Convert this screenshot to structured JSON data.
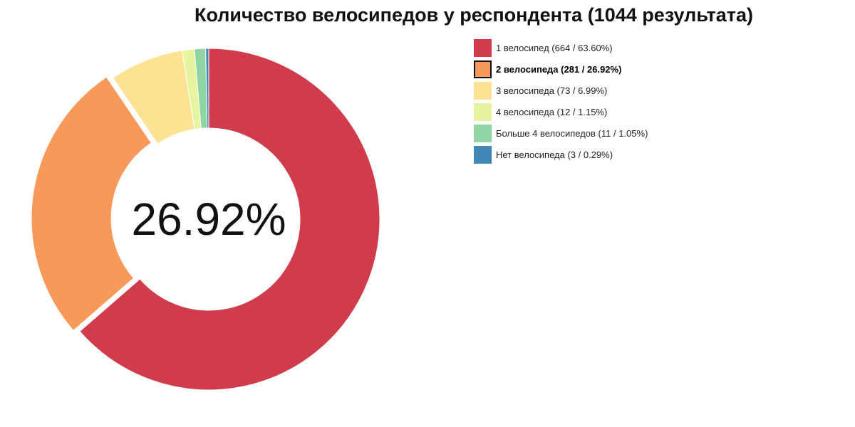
{
  "chart_data": {
    "type": "pie",
    "variant": "donut",
    "title": "Количество велосипедов у респондента (1044 результата)",
    "center_label": "26.92%",
    "highlighted_index": 1,
    "legend_position": "right",
    "series": [
      {
        "label": "1 велосипед (664 / 63.60%)",
        "value": 664,
        "percent": 63.6,
        "color": "#d03c4b"
      },
      {
        "label": "2 велосипеда (281 / 26.92%)",
        "value": 281,
        "percent": 26.92,
        "color": "#f89859"
      },
      {
        "label": "3 велосипеда (73 / 6.99%)",
        "value": 73,
        "percent": 6.99,
        "color": "#fde294"
      },
      {
        "label": "4 велосипеда (12 / 1.15%)",
        "value": 12,
        "percent": 1.15,
        "color": "#e6f59d"
      },
      {
        "label": "Больше 4 велосипедов (11 / 1.05%)",
        "value": 11,
        "percent": 1.05,
        "color": "#90d4a4"
      },
      {
        "label": "Нет велосипеда (3 / 0.29%)",
        "value": 3,
        "percent": 0.29,
        "color": "#4087b5"
      }
    ]
  }
}
